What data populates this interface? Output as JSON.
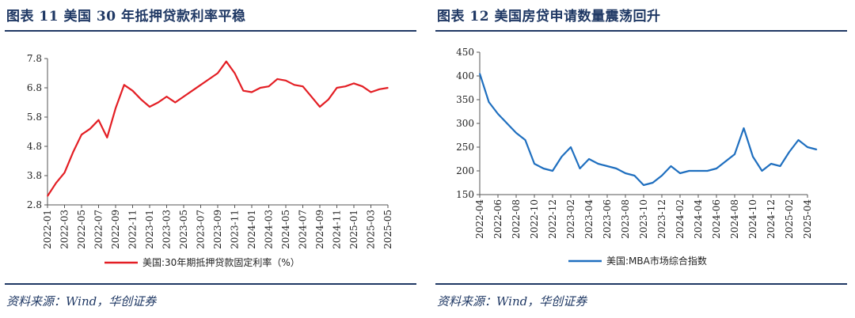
{
  "left": {
    "title": "图表 11    美国 30 年抵押贷款利率平稳",
    "source": "资料来源：Wind，华创证券",
    "chart_data": {
      "type": "line",
      "title": "图表 11 美国 30 年抵押贷款利率平稳",
      "ylim": [
        2.8,
        7.8
      ],
      "yticks": [
        "2.8",
        "3.8",
        "4.8",
        "5.8",
        "6.8",
        "7.8"
      ],
      "xticks": [
        "2022-01",
        "2022-03",
        "2022-05",
        "2022-07",
        "2022-09",
        "2022-11",
        "2023-01",
        "2023-03",
        "2023-05",
        "2023-07",
        "2023-09",
        "2023-11",
        "2024-01",
        "2024-03",
        "2024-05",
        "2024-07",
        "2024-09",
        "2024-11",
        "2025-01",
        "2025-03",
        "2025-05"
      ],
      "legend_position": "bottom",
      "color": "#e31e24",
      "series": [
        {
          "name": "美国:30年期抵押贷款固定利率（%）",
          "values": [
            {
              "x": "2022-01",
              "y": 3.1
            },
            {
              "x": "2022-02",
              "y": 3.55
            },
            {
              "x": "2022-03",
              "y": 3.9
            },
            {
              "x": "2022-04",
              "y": 4.6
            },
            {
              "x": "2022-05",
              "y": 5.2
            },
            {
              "x": "2022-06",
              "y": 5.4
            },
            {
              "x": "2022-07",
              "y": 5.7
            },
            {
              "x": "2022-08",
              "y": 5.1
            },
            {
              "x": "2022-09",
              "y": 6.1
            },
            {
              "x": "2022-10",
              "y": 6.9
            },
            {
              "x": "2022-11",
              "y": 6.7
            },
            {
              "x": "2022-12",
              "y": 6.4
            },
            {
              "x": "2023-01",
              "y": 6.15
            },
            {
              "x": "2023-02",
              "y": 6.3
            },
            {
              "x": "2023-03",
              "y": 6.5
            },
            {
              "x": "2023-04",
              "y": 6.3
            },
            {
              "x": "2023-05",
              "y": 6.5
            },
            {
              "x": "2023-06",
              "y": 6.7
            },
            {
              "x": "2023-07",
              "y": 6.9
            },
            {
              "x": "2023-08",
              "y": 7.1
            },
            {
              "x": "2023-09",
              "y": 7.3
            },
            {
              "x": "2023-10",
              "y": 7.7
            },
            {
              "x": "2023-11",
              "y": 7.3
            },
            {
              "x": "2023-12",
              "y": 6.7
            },
            {
              "x": "2024-01",
              "y": 6.65
            },
            {
              "x": "2024-02",
              "y": 6.8
            },
            {
              "x": "2024-03",
              "y": 6.85
            },
            {
              "x": "2024-04",
              "y": 7.1
            },
            {
              "x": "2024-05",
              "y": 7.05
            },
            {
              "x": "2024-06",
              "y": 6.9
            },
            {
              "x": "2024-07",
              "y": 6.85
            },
            {
              "x": "2024-08",
              "y": 6.5
            },
            {
              "x": "2024-09",
              "y": 6.15
            },
            {
              "x": "2024-10",
              "y": 6.4
            },
            {
              "x": "2024-11",
              "y": 6.8
            },
            {
              "x": "2024-12",
              "y": 6.85
            },
            {
              "x": "2025-01",
              "y": 6.95
            },
            {
              "x": "2025-02",
              "y": 6.85
            },
            {
              "x": "2025-03",
              "y": 6.65
            },
            {
              "x": "2025-04",
              "y": 6.75
            },
            {
              "x": "2025-05",
              "y": 6.8
            }
          ]
        }
      ]
    }
  },
  "right": {
    "title": "图表 12    美国房贷申请数量震荡回升",
    "source": "资料来源：Wind，华创证券",
    "chart_data": {
      "type": "line",
      "title": "图表 12 美国房贷申请数量震荡回升",
      "ylim": [
        150,
        450
      ],
      "yticks": [
        "150",
        "200",
        "250",
        "300",
        "350",
        "400",
        "450"
      ],
      "xticks": [
        "2022-04",
        "2022-06",
        "2022-08",
        "2022-10",
        "2022-12",
        "2023-02",
        "2023-04",
        "2023-06",
        "2023-08",
        "2023-10",
        "2023-12",
        "2024-02",
        "2024-04",
        "2024-06",
        "2024-08",
        "2024-10",
        "2024-12",
        "2025-02",
        "2025-04"
      ],
      "legend_position": "bottom",
      "color": "#1f6fbf",
      "series": [
        {
          "name": "美国:MBA市场综合指数",
          "values": [
            {
              "x": "2022-04",
              "y": 405
            },
            {
              "x": "2022-05",
              "y": 345
            },
            {
              "x": "2022-06",
              "y": 320
            },
            {
              "x": "2022-07",
              "y": 300
            },
            {
              "x": "2022-08",
              "y": 280
            },
            {
              "x": "2022-09",
              "y": 265
            },
            {
              "x": "2022-10",
              "y": 215
            },
            {
              "x": "2022-11",
              "y": 205
            },
            {
              "x": "2022-12",
              "y": 200
            },
            {
              "x": "2023-01",
              "y": 230
            },
            {
              "x": "2023-02",
              "y": 250
            },
            {
              "x": "2023-03",
              "y": 205
            },
            {
              "x": "2023-04",
              "y": 225
            },
            {
              "x": "2023-05",
              "y": 215
            },
            {
              "x": "2023-06",
              "y": 210
            },
            {
              "x": "2023-07",
              "y": 205
            },
            {
              "x": "2023-08",
              "y": 195
            },
            {
              "x": "2023-09",
              "y": 190
            },
            {
              "x": "2023-10",
              "y": 170
            },
            {
              "x": "2023-11",
              "y": 175
            },
            {
              "x": "2023-12",
              "y": 190
            },
            {
              "x": "2024-01",
              "y": 210
            },
            {
              "x": "2024-02",
              "y": 195
            },
            {
              "x": "2024-03",
              "y": 200
            },
            {
              "x": "2024-04",
              "y": 200
            },
            {
              "x": "2024-05",
              "y": 200
            },
            {
              "x": "2024-06",
              "y": 205
            },
            {
              "x": "2024-07",
              "y": 220
            },
            {
              "x": "2024-08",
              "y": 235
            },
            {
              "x": "2024-09",
              "y": 290
            },
            {
              "x": "2024-10",
              "y": 230
            },
            {
              "x": "2024-11",
              "y": 200
            },
            {
              "x": "2024-12",
              "y": 215
            },
            {
              "x": "2025-01",
              "y": 210
            },
            {
              "x": "2025-02",
              "y": 240
            },
            {
              "x": "2025-03",
              "y": 265
            },
            {
              "x": "2025-04",
              "y": 250
            },
            {
              "x": "2025-05",
              "y": 245
            }
          ]
        }
      ]
    }
  }
}
